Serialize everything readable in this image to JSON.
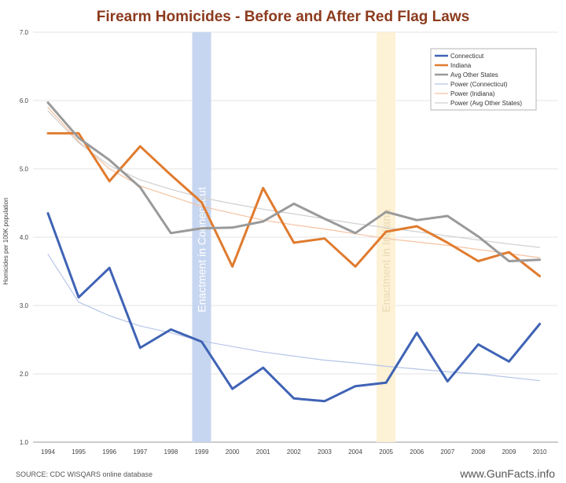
{
  "chart_data": {
    "type": "line",
    "title": "Firearm Homicides - Before and After Red Flag Laws",
    "ylabel": "Homicides per 100K population",
    "xlabel": "",
    "ylim": [
      1.0,
      7.0
    ],
    "yticks": [
      "1.0",
      "2.0",
      "3.0",
      "4.0",
      "5.0",
      "6.0",
      "7.0"
    ],
    "categories": [
      "1994",
      "1995",
      "1996",
      "1997",
      "1998",
      "1999",
      "2000",
      "2001",
      "2002",
      "2003",
      "2004",
      "2005",
      "2006",
      "2007",
      "2008",
      "2009",
      "2010"
    ],
    "series": [
      {
        "name": "Connecticut",
        "color": "#3f63b5",
        "width": 3,
        "values": [
          4.35,
          3.12,
          3.55,
          2.38,
          2.65,
          2.47,
          1.78,
          2.09,
          1.64,
          1.6,
          1.82,
          1.87,
          2.6,
          1.89,
          2.43,
          2.18,
          2.73
        ]
      },
      {
        "name": "Indiana",
        "color": "#e07b2e",
        "width": 3,
        "values": [
          5.52,
          5.52,
          4.82,
          5.33,
          4.91,
          4.51,
          3.57,
          4.72,
          3.92,
          3.98,
          3.57,
          4.08,
          4.16,
          3.92,
          3.65,
          3.78,
          3.43
        ]
      },
      {
        "name": "Avg Other States",
        "color": "#9a9a9a",
        "width": 3,
        "values": [
          5.97,
          5.45,
          5.13,
          4.73,
          4.06,
          4.13,
          4.14,
          4.23,
          4.49,
          4.27,
          4.06,
          4.37,
          4.25,
          4.31,
          4.01,
          3.65,
          3.67
        ]
      },
      {
        "name": "Power (Connecticut)",
        "color": "#b7c6e8",
        "width": 1.2,
        "trend_of": 0,
        "values": [
          3.75,
          3.05,
          2.85,
          2.7,
          2.6,
          2.48,
          2.4,
          2.32,
          2.26,
          2.2,
          2.16,
          2.11,
          2.07,
          2.03,
          2.0,
          1.95,
          1.9
        ]
      },
      {
        "name": "Power (Indiana)",
        "color": "#f4c2a1",
        "width": 1.2,
        "trend_of": 1,
        "values": [
          5.9,
          5.4,
          5.0,
          4.75,
          4.6,
          4.45,
          4.35,
          4.25,
          4.18,
          4.12,
          4.05,
          3.98,
          3.93,
          3.88,
          3.82,
          3.76,
          3.7
        ]
      },
      {
        "name": "Power (Avg Other States)",
        "color": "#cfcfcf",
        "width": 1.2,
        "trend_of": 2,
        "values": [
          5.85,
          5.38,
          5.05,
          4.84,
          4.7,
          4.58,
          4.49,
          4.41,
          4.34,
          4.27,
          4.2,
          4.14,
          4.08,
          4.02,
          3.96,
          3.9,
          3.85
        ]
      }
    ],
    "highlight_bands": [
      {
        "year": "1999",
        "label": "Enactment in Connecticut",
        "color": "#c7d6f0",
        "text_color": "#ffffff"
      },
      {
        "year": "2005",
        "label": "Enactment in Indiana",
        "color": "#fdf1d6",
        "text_color": "#e9dbb3"
      }
    ],
    "legend_position": "top-right",
    "grid": true
  },
  "footer": {
    "source": "SOURCE: CDC WISQARS online database",
    "watermark": "www.GunFacts.info"
  },
  "colors": {
    "title": "#8c3b1e",
    "grid": "#e3e3e3",
    "axis": "#999999"
  }
}
